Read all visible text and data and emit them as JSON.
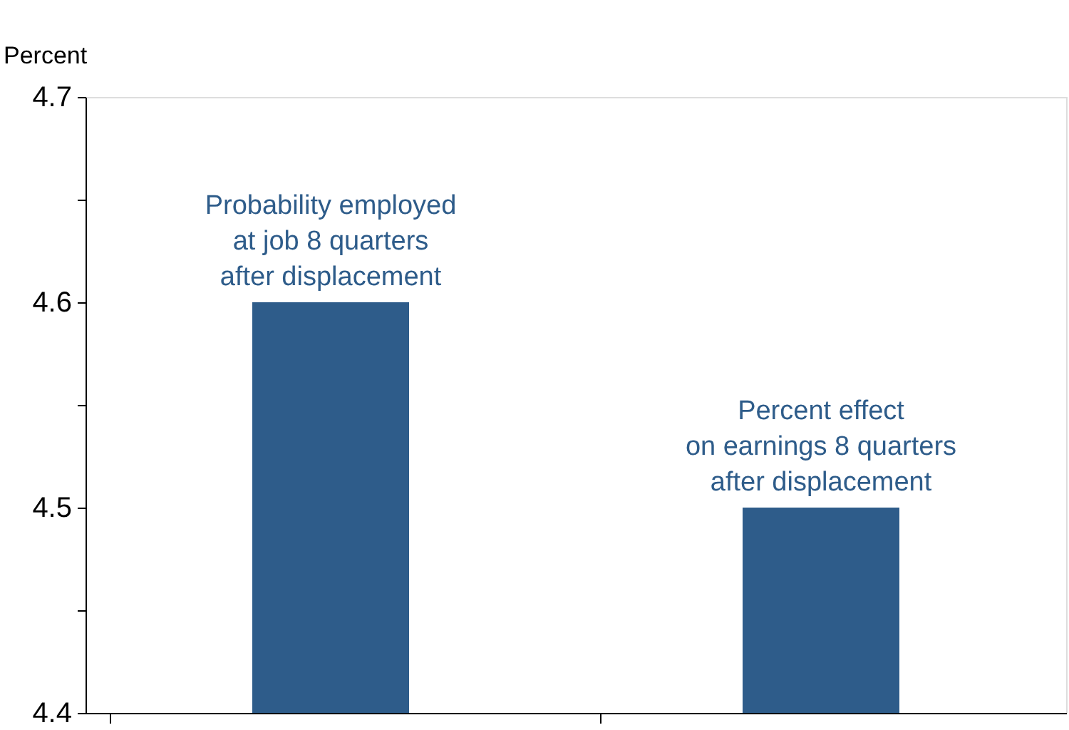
{
  "chart_data": {
    "type": "bar",
    "ylabel": "Percent",
    "categories": [
      "Probability employed\nat job 8 quarters\nafter displacement",
      "Percent effect\non earnings 8 quarters\nafter displacement"
    ],
    "series": [
      {
        "color": "#2e5c8a",
        "values": [
          4.6,
          4.5
        ]
      }
    ],
    "ylim": [
      4.4,
      4.7
    ],
    "yticks": [
      4.4,
      {
        "value": 4.45,
        "label": null
      },
      4.5,
      {
        "value": 4.55,
        "label": null
      },
      4.6,
      {
        "value": 4.65,
        "label": null
      },
      4.7
    ],
    "grid": false,
    "tick_labels": "y"
  }
}
